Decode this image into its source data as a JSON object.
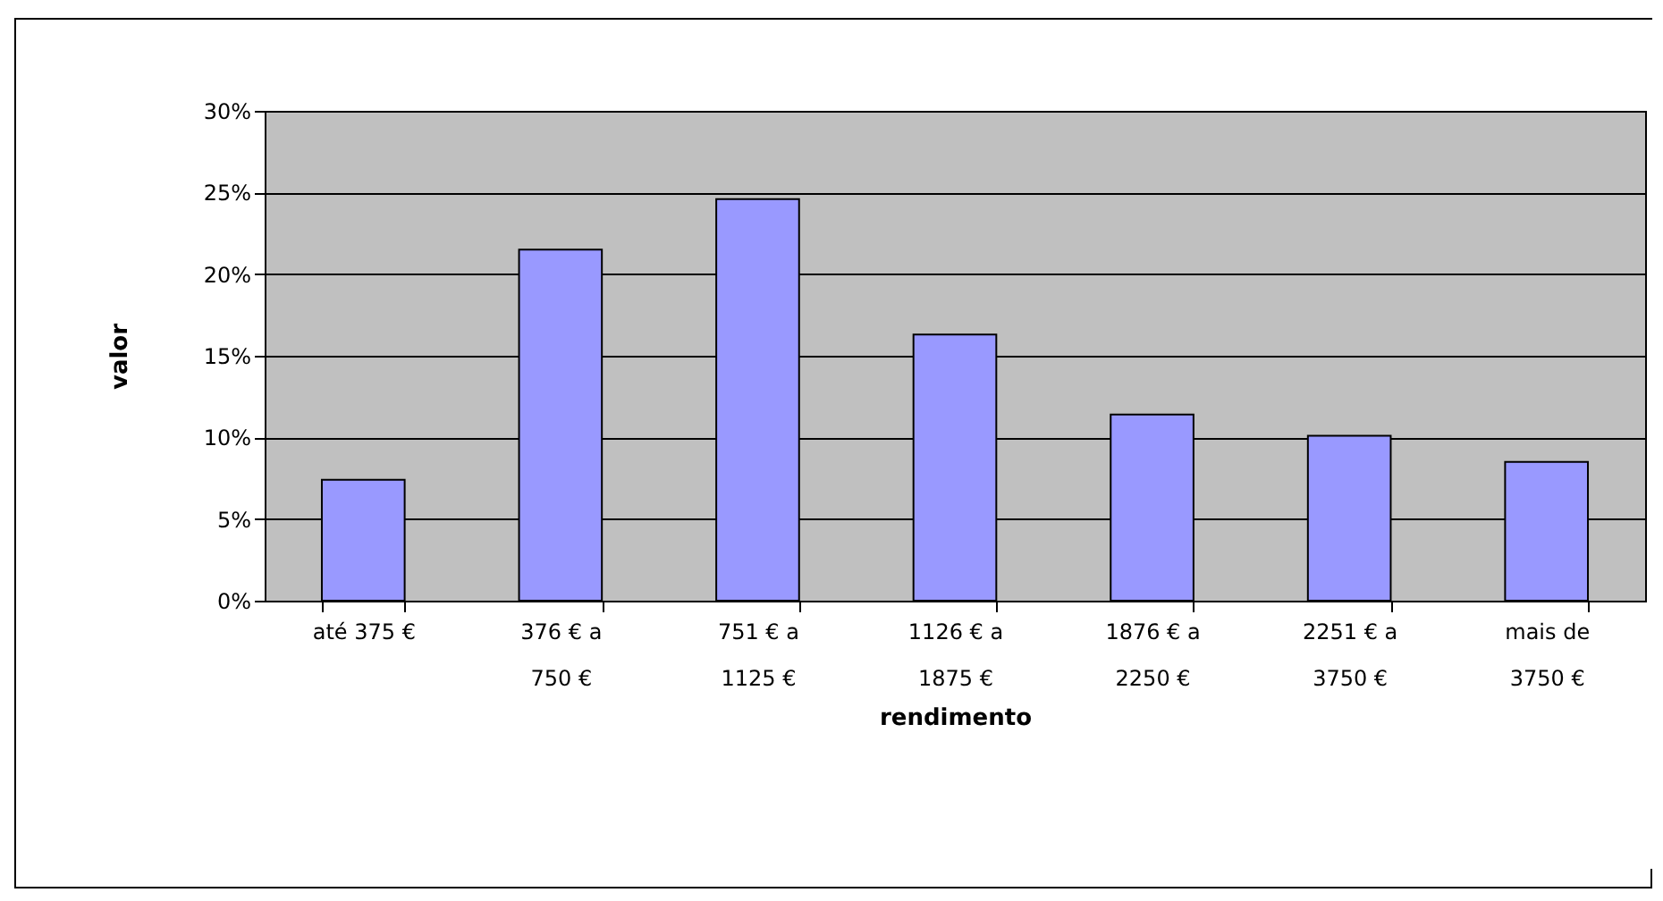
{
  "chart_data": {
    "type": "bar",
    "xlabel": "rendimento",
    "ylabel": "valor",
    "categories": [
      "até 375 €",
      "376 € a 750 €",
      "751 € a 1125 €",
      "1126 € a 1875 €",
      "1876 € a 2250 €",
      "2251 € a 3750 €",
      "mais de 3750 €"
    ],
    "values": [
      7.4,
      21.5,
      24.6,
      16.3,
      11.4,
      10.1,
      8.5
    ],
    "color": "#9999ff",
    "ylim": [
      0,
      30
    ],
    "yticks": [
      {
        "value": 0,
        "label": "0%"
      },
      {
        "value": 5,
        "label": "5%"
      },
      {
        "value": 10,
        "label": "10%"
      },
      {
        "value": 15,
        "label": "15%"
      },
      {
        "value": 20,
        "label": "20%"
      },
      {
        "value": 25,
        "label": "25%"
      },
      {
        "value": 30,
        "label": "30%"
      }
    ],
    "grid": true
  }
}
